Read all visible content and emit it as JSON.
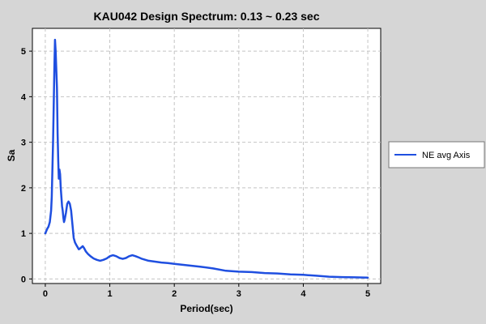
{
  "chart_data": {
    "type": "line",
    "title": "KAU042 Design Spectrum: 0.13 ~ 0.23 sec",
    "xlabel": "Period(sec)",
    "ylabel": "Sa",
    "xlim": [
      -0.2,
      5.2
    ],
    "ylim": [
      -0.1,
      5.5
    ],
    "xticks": [
      0,
      1,
      2,
      3,
      4,
      5
    ],
    "yticks": [
      0,
      1,
      2,
      3,
      4,
      5
    ],
    "grid": true,
    "legend_position": "right",
    "series": [
      {
        "name": "NE avg Axis",
        "color": "#1f4fe0",
        "x": [
          0.0,
          0.03,
          0.05,
          0.07,
          0.09,
          0.1,
          0.11,
          0.12,
          0.13,
          0.14,
          0.15,
          0.16,
          0.17,
          0.18,
          0.19,
          0.2,
          0.21,
          0.22,
          0.23,
          0.24,
          0.25,
          0.26,
          0.27,
          0.28,
          0.29,
          0.3,
          0.32,
          0.34,
          0.36,
          0.38,
          0.4,
          0.42,
          0.44,
          0.46,
          0.48,
          0.5,
          0.52,
          0.55,
          0.58,
          0.6,
          0.63,
          0.66,
          0.7,
          0.75,
          0.8,
          0.85,
          0.9,
          0.95,
          1.0,
          1.05,
          1.1,
          1.15,
          1.2,
          1.25,
          1.3,
          1.35,
          1.4,
          1.45,
          1.5,
          1.6,
          1.7,
          1.8,
          1.9,
          2.0,
          2.2,
          2.4,
          2.6,
          2.8,
          3.0,
          3.2,
          3.4,
          3.6,
          3.8,
          4.0,
          4.2,
          4.4,
          4.6,
          4.8,
          5.0
        ],
        "y": [
          1.0,
          1.1,
          1.15,
          1.25,
          1.5,
          1.8,
          2.4,
          3.0,
          3.8,
          4.6,
          5.25,
          5.0,
          4.6,
          4.2,
          3.2,
          2.6,
          2.2,
          2.4,
          2.3,
          2.0,
          1.8,
          1.6,
          1.5,
          1.35,
          1.25,
          1.3,
          1.45,
          1.65,
          1.7,
          1.65,
          1.5,
          1.2,
          0.9,
          0.8,
          0.75,
          0.7,
          0.65,
          0.68,
          0.72,
          0.68,
          0.6,
          0.55,
          0.5,
          0.45,
          0.42,
          0.4,
          0.42,
          0.45,
          0.5,
          0.52,
          0.5,
          0.46,
          0.44,
          0.46,
          0.5,
          0.52,
          0.5,
          0.47,
          0.44,
          0.4,
          0.38,
          0.36,
          0.35,
          0.33,
          0.3,
          0.27,
          0.23,
          0.18,
          0.16,
          0.15,
          0.13,
          0.12,
          0.1,
          0.09,
          0.07,
          0.05,
          0.04,
          0.035,
          0.03
        ]
      }
    ]
  }
}
